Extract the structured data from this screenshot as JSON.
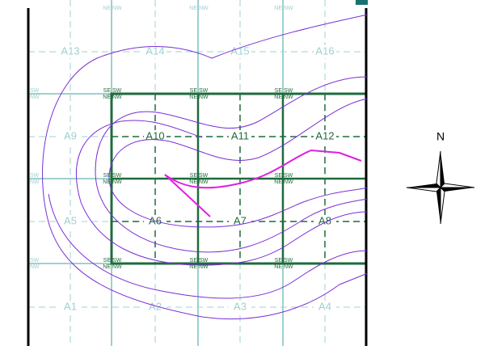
{
  "map": {
    "cells": [
      [
        "A13",
        "A14",
        "A15",
        "A16"
      ],
      [
        "A9",
        "A10",
        "A11",
        "A12"
      ],
      [
        "A5",
        "A6",
        "A7",
        "A8"
      ],
      [
        "A1",
        "A2",
        "A3",
        "A4"
      ]
    ],
    "corners": {
      "ne": "NE",
      "nw": "NW",
      "se": "SE",
      "sw": "SW"
    },
    "compass": "N"
  }
}
